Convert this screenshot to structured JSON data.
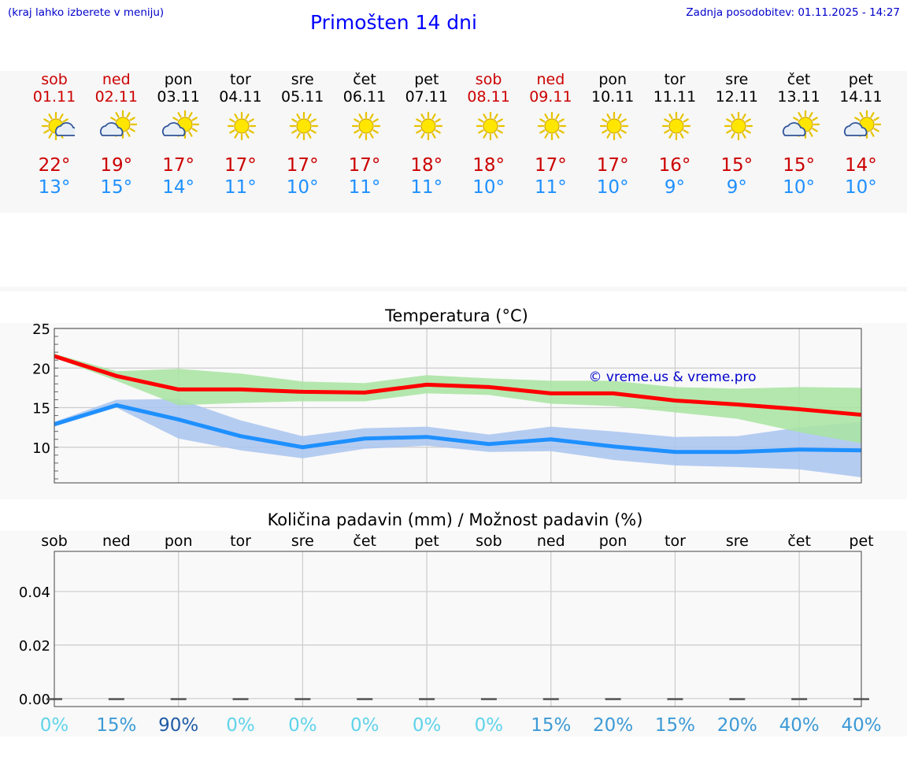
{
  "header": {
    "hint": "(kraj lahko izberete v meniju)",
    "title": "Primošten 14 dni",
    "updated": "Zadnja posodobitev: 01.11.2025 - 14:27"
  },
  "days": [
    {
      "name": "sob",
      "date": "01.11",
      "weekend": true,
      "icon": "sun-cloud-icon",
      "hi": "22°",
      "lo": "13°"
    },
    {
      "name": "ned",
      "date": "02.11",
      "weekend": true,
      "icon": "cloud-sun-icon",
      "hi": "19°",
      "lo": "15°"
    },
    {
      "name": "pon",
      "date": "03.11",
      "weekend": false,
      "icon": "cloud-sun-icon",
      "hi": "17°",
      "lo": "14°"
    },
    {
      "name": "tor",
      "date": "04.11",
      "weekend": false,
      "icon": "sun-icon",
      "hi": "17°",
      "lo": "11°"
    },
    {
      "name": "sre",
      "date": "05.11",
      "weekend": false,
      "icon": "sun-icon",
      "hi": "17°",
      "lo": "10°"
    },
    {
      "name": "čet",
      "date": "06.11",
      "weekend": false,
      "icon": "sun-icon",
      "hi": "17°",
      "lo": "11°"
    },
    {
      "name": "pet",
      "date": "07.11",
      "weekend": false,
      "icon": "sun-icon",
      "hi": "18°",
      "lo": "11°"
    },
    {
      "name": "sob",
      "date": "08.11",
      "weekend": true,
      "icon": "sun-icon",
      "hi": "18°",
      "lo": "10°"
    },
    {
      "name": "ned",
      "date": "09.11",
      "weekend": true,
      "icon": "sun-icon",
      "hi": "17°",
      "lo": "11°"
    },
    {
      "name": "pon",
      "date": "10.11",
      "weekend": false,
      "icon": "sun-icon",
      "hi": "17°",
      "lo": "10°"
    },
    {
      "name": "tor",
      "date": "11.11",
      "weekend": false,
      "icon": "sun-icon",
      "hi": "16°",
      "lo": "9°"
    },
    {
      "name": "sre",
      "date": "12.11",
      "weekend": false,
      "icon": "sun-icon",
      "hi": "15°",
      "lo": "9°"
    },
    {
      "name": "čet",
      "date": "13.11",
      "weekend": false,
      "icon": "cloud-sun-icon",
      "hi": "15°",
      "lo": "10°"
    },
    {
      "name": "pet",
      "date": "14.11",
      "weekend": false,
      "icon": "cloud-sun-icon",
      "hi": "14°",
      "lo": "10°"
    }
  ],
  "colors": {
    "max_line": "#ff0000",
    "min_line": "#1e90ff",
    "max_band": "#a8e4a0",
    "min_band": "#a9c4f0",
    "weekend": "#cc0000",
    "copyright": "#0000cc"
  },
  "chart_data": [
    {
      "type": "line",
      "title": "Temperatura (°C)",
      "annotation": "© vreme.us & vreme.pro",
      "x": [
        0,
        1,
        2,
        3,
        4,
        5,
        6,
        7,
        8,
        9,
        10,
        11,
        12,
        13
      ],
      "ylim": [
        5.5,
        25
      ],
      "yticks": [
        "10",
        "15",
        "20",
        "25"
      ],
      "ytick_values": [
        10,
        15,
        20,
        25
      ],
      "grid": true,
      "series": [
        {
          "name": "max",
          "values": [
            21.5,
            19.0,
            17.3,
            17.3,
            17.0,
            16.9,
            17.9,
            17.6,
            16.8,
            16.8,
            15.9,
            15.4,
            14.8,
            14.1
          ],
          "band_low": [
            21.3,
            18.4,
            15.3,
            15.6,
            15.8,
            15.8,
            16.8,
            16.6,
            15.5,
            15.2,
            14.4,
            13.6,
            11.9,
            10.5
          ],
          "band_high": [
            21.8,
            19.6,
            19.9,
            19.3,
            18.3,
            18.1,
            19.1,
            18.7,
            18.4,
            18.4,
            17.6,
            17.4,
            17.6,
            17.5
          ]
        },
        {
          "name": "min",
          "values": [
            12.9,
            15.3,
            13.5,
            11.4,
            10.0,
            11.1,
            11.3,
            10.4,
            11.0,
            10.1,
            9.4,
            9.4,
            9.7,
            9.6
          ],
          "band_low": [
            12.6,
            15.0,
            11.1,
            9.6,
            8.6,
            9.8,
            10.2,
            9.4,
            9.5,
            8.4,
            7.7,
            7.5,
            7.2,
            6.2
          ],
          "band_high": [
            13.2,
            16.0,
            16.1,
            13.4,
            11.4,
            12.4,
            12.6,
            11.6,
            12.6,
            12.0,
            11.3,
            11.4,
            12.5,
            13.2
          ]
        }
      ]
    },
    {
      "type": "bar",
      "title": "Količina padavin (mm) / Možnost padavin (%)",
      "categories": [
        "sob",
        "ned",
        "pon",
        "tor",
        "sre",
        "čet",
        "pet",
        "sob",
        "ned",
        "pon",
        "tor",
        "sre",
        "čet",
        "pet"
      ],
      "values": [
        0,
        0,
        0,
        0,
        0,
        0,
        0,
        0,
        0,
        0,
        0,
        0,
        0,
        0
      ],
      "ylim": [
        -0.003,
        0.055
      ],
      "yticks": [
        "0.00",
        "0.02",
        "0.04"
      ],
      "ytick_values": [
        0,
        0.02,
        0.04
      ],
      "probabilities": [
        "0%",
        "15%",
        "90%",
        "0%",
        "0%",
        "0%",
        "0%",
        "0%",
        "15%",
        "20%",
        "15%",
        "20%",
        "40%",
        "40%"
      ],
      "probability_values": [
        0,
        15,
        90,
        0,
        0,
        0,
        0,
        0,
        15,
        20,
        15,
        20,
        40,
        40
      ]
    }
  ]
}
